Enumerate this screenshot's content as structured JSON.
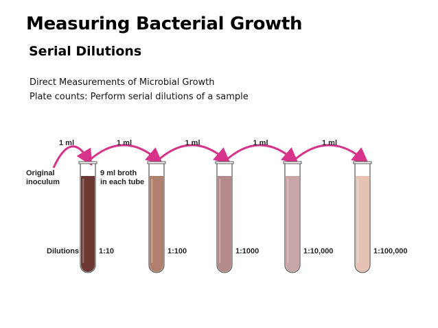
{
  "slide": {
    "title": "Measuring Bacterial Growth",
    "subtitle": "Serial Dilutions",
    "lines": [
      "Direct Measurements of Microbial Growth",
      "Plate counts: Perform serial dilutions of a sample"
    ]
  },
  "figure": {
    "transfer_label": "1 ml",
    "inoculum_label_line1": "Original",
    "inoculum_label_line2": "inoculum",
    "broth_label_line1": "9 ml broth",
    "broth_label_line2": "in each tube",
    "dilutions_label": "Dilutions",
    "arrow_color": "#d6338a",
    "tubes": [
      {
        "dilution": "1:10",
        "color": "#6e3832"
      },
      {
        "dilution": "1:100",
        "color": "#b07f6e"
      },
      {
        "dilution": "1:1000",
        "color": "#b48a8a"
      },
      {
        "dilution": "1:10,000",
        "color": "#c8a5a7"
      },
      {
        "dilution": "1:100,000",
        "color": "#e5c2b2"
      }
    ]
  }
}
